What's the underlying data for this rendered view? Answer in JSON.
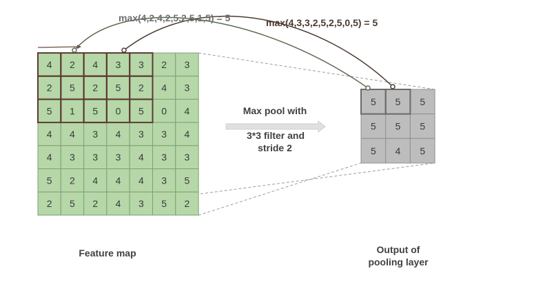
{
  "colors": {
    "feature_fill": "#b6d7a8",
    "feature_border": "#7f9f75",
    "window_border": "#5b3a34",
    "output_fill": "#bdbdbd",
    "output_border": "#909090",
    "output_highlight_border": "#6a6a6a",
    "arrow_fill": "#d9d9d9",
    "curve_1": "#5a6a50",
    "curve_2": "#4a3a30"
  },
  "feature_map": {
    "label": "Feature map",
    "rows": [
      [
        "4",
        "2",
        "4",
        "3",
        "3",
        "2",
        "3"
      ],
      [
        "2",
        "5",
        "2",
        "5",
        "2",
        "4",
        "3"
      ],
      [
        "5",
        "1",
        "5",
        "0",
        "5",
        "0",
        "4"
      ],
      [
        "4",
        "4",
        "3",
        "4",
        "3",
        "3",
        "4"
      ],
      [
        "4",
        "3",
        "3",
        "3",
        "4",
        "3",
        "3"
      ],
      [
        "5",
        "2",
        "4",
        "4",
        "4",
        "3",
        "5"
      ],
      [
        "2",
        "5",
        "2",
        "4",
        "3",
        "5",
        "2"
      ]
    ]
  },
  "operation": {
    "line1": "Max pool with",
    "line2": "3*3 filter and",
    "line3": "stride 2"
  },
  "output": {
    "label_line1": "Output of",
    "label_line2": "pooling layer",
    "rows": [
      [
        "5",
        "5",
        "5"
      ],
      [
        "5",
        "5",
        "5"
      ],
      [
        "5",
        "4",
        "5"
      ]
    ]
  },
  "annotations": {
    "formula_1": "max(4,2,4,2,5,2,5,1,5) = 5",
    "formula_2": "max(4,3,3,2,5,2,5,0,5) = 5"
  }
}
